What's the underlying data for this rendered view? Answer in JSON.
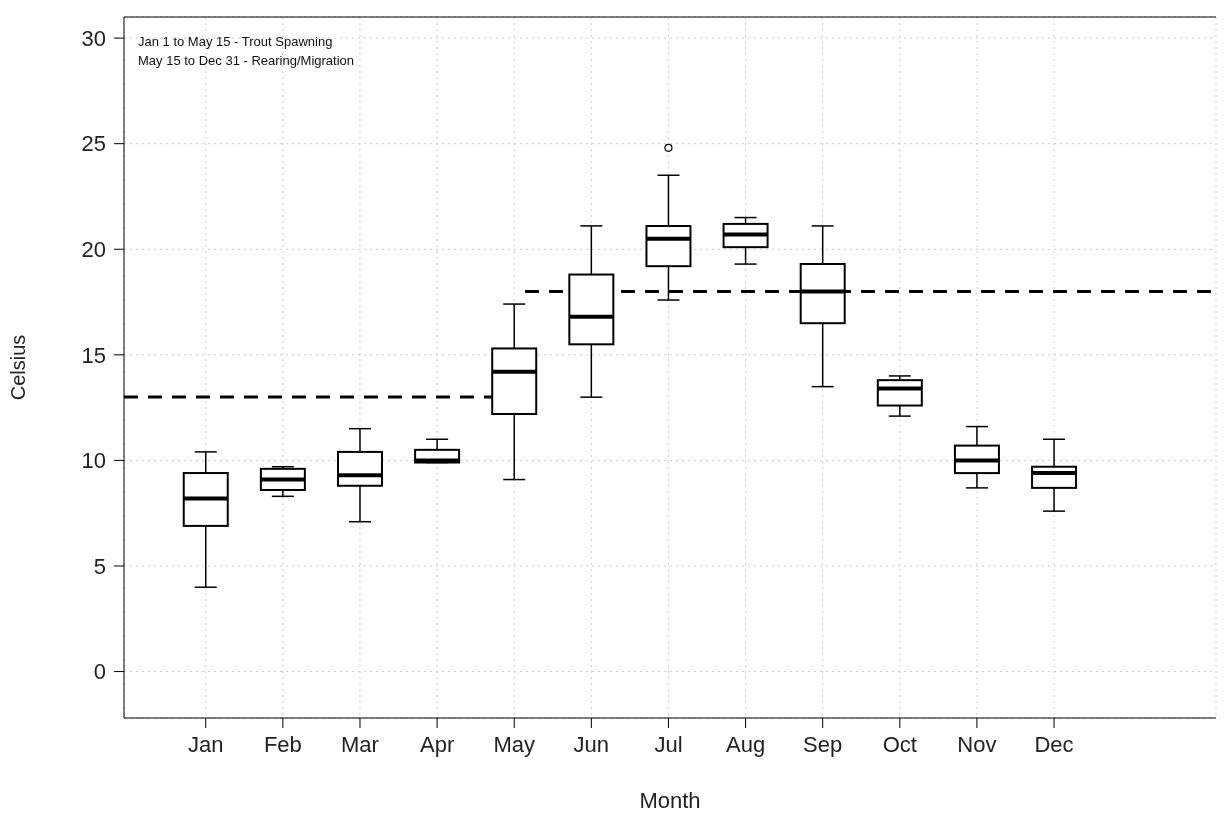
{
  "chart_data": {
    "type": "box",
    "xlabel": "Month",
    "ylabel": "Celsius",
    "categories": [
      "Jan",
      "Feb",
      "Mar",
      "Apr",
      "May",
      "Jun",
      "Jul",
      "Aug",
      "Sep",
      "Oct",
      "Nov",
      "Dec"
    ],
    "series": [
      {
        "color": "#000000",
        "boxes": [
          {
            "low": 4.0,
            "q1": 6.9,
            "median": 8.2,
            "q3": 9.4,
            "high": 10.4
          },
          {
            "low": 8.3,
            "q1": 8.6,
            "median": 9.1,
            "q3": 9.6,
            "high": 9.7
          },
          {
            "low": 7.1,
            "q1": 8.8,
            "median": 9.3,
            "q3": 10.4,
            "high": 11.5
          },
          {
            "low": 9.9,
            "q1": 9.9,
            "median": 10.0,
            "q3": 10.5,
            "high": 11.0
          },
          {
            "low": 9.1,
            "q1": 12.2,
            "median": 14.2,
            "q3": 15.3,
            "high": 17.4
          },
          {
            "low": 13.0,
            "q1": 15.5,
            "median": 16.8,
            "q3": 18.8,
            "high": 21.1
          },
          {
            "low": 17.6,
            "q1": 19.2,
            "median": 20.5,
            "q3": 21.1,
            "high": 23.5,
            "outliers": [
              24.8
            ]
          },
          {
            "low": 19.3,
            "q1": 20.1,
            "median": 20.7,
            "q3": 21.2,
            "high": 21.5
          },
          {
            "low": 13.5,
            "q1": 16.5,
            "median": 18.0,
            "q3": 19.3,
            "high": 21.1
          },
          {
            "low": 12.1,
            "q1": 12.6,
            "median": 13.4,
            "q3": 13.8,
            "high": 14.0
          },
          {
            "low": 8.7,
            "q1": 9.4,
            "median": 10.0,
            "q3": 10.7,
            "high": 11.6
          },
          {
            "low": 7.6,
            "q1": 8.7,
            "median": 9.4,
            "q3": 9.7,
            "high": 11.0
          }
        ]
      }
    ],
    "ylim": [
      -2.2,
      31
    ],
    "yticks": [
      0,
      5,
      10,
      15,
      20,
      25,
      30
    ],
    "grid": true,
    "ref_lines": [
      {
        "axis": "y",
        "value": 13,
        "line_style": "dashed",
        "color": "#000000"
      },
      {
        "axis": "y",
        "value": 18,
        "line_style": "dashed",
        "color": "#000000"
      }
    ],
    "annotations": [
      "Jan 1 to May 15 - Trout Spawning",
      "May 15 to Dec 31 - Rearing/Migration"
    ]
  }
}
